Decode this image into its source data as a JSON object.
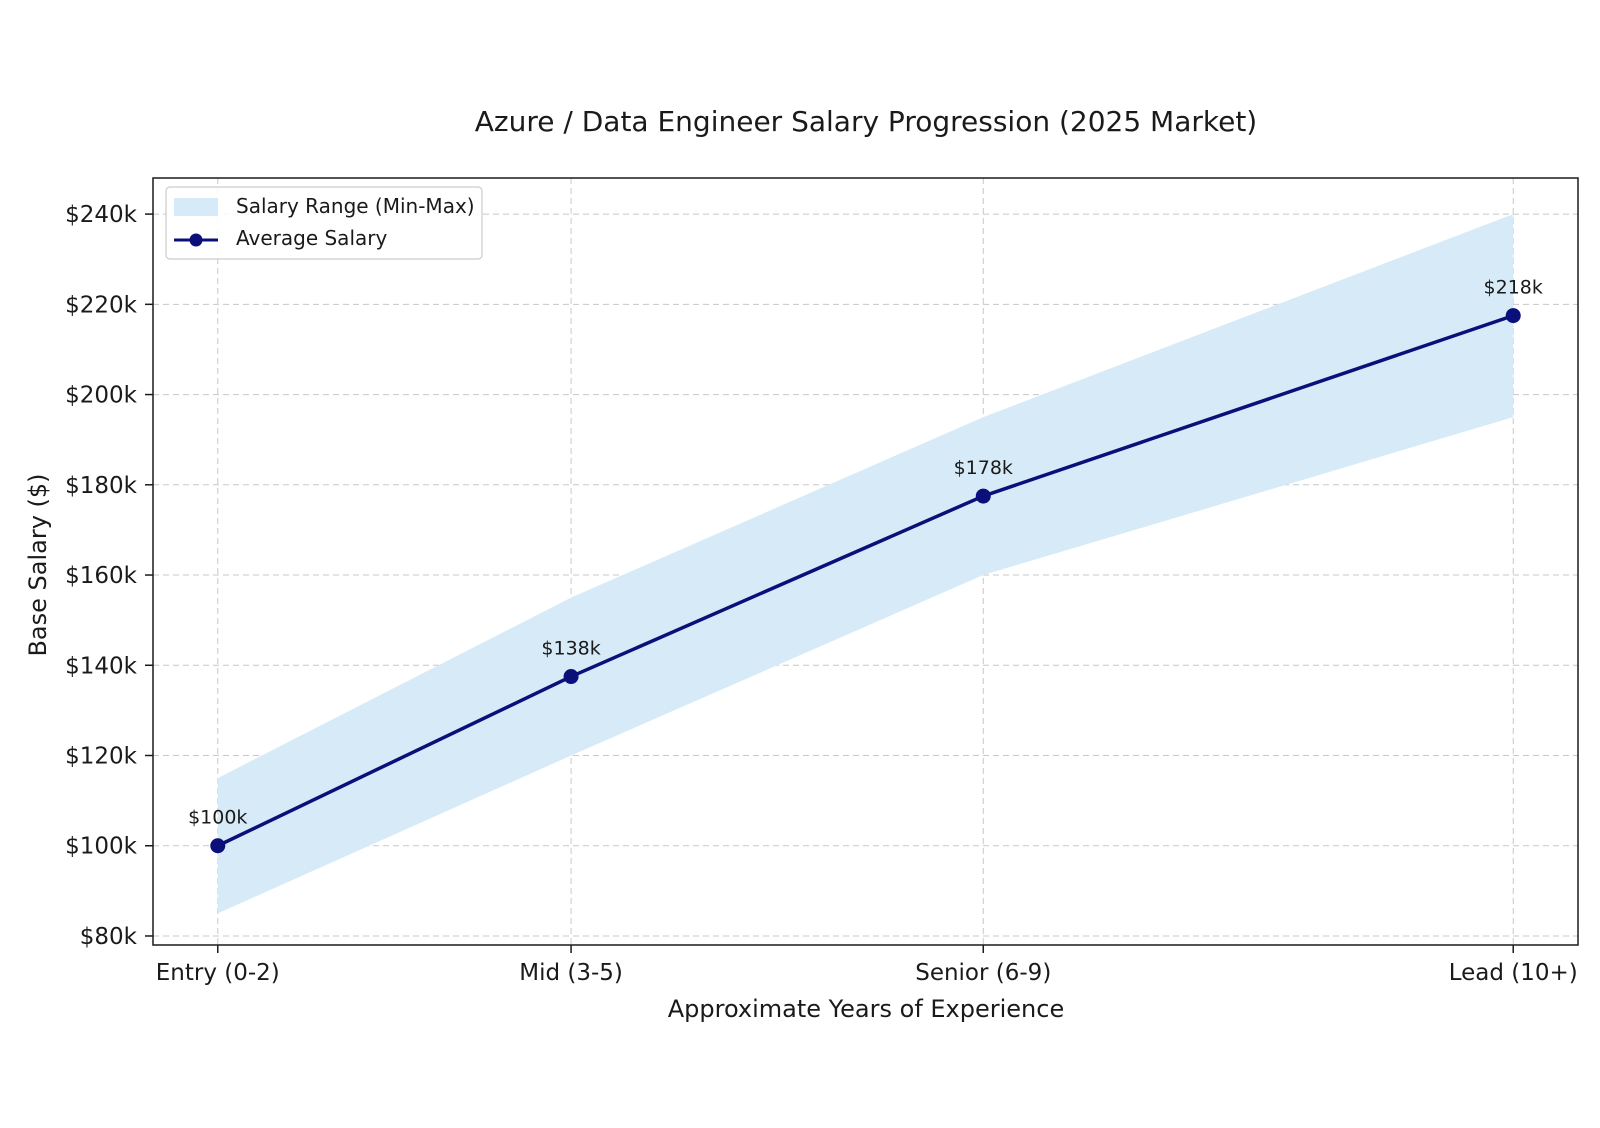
{
  "chart_data": {
    "type": "line",
    "title": "Azure / Data Engineer Salary Progression (2025 Market)",
    "xlabel": "Approximate Years of Experience",
    "ylabel": "Base Salary ($)",
    "categories": [
      "Entry (0-2)",
      "Mid (3-5)",
      "Senior (6-9)",
      "Lead (10+)"
    ],
    "x_positions": [
      1,
      4,
      7.5,
      12
    ],
    "xlim": [
      0.45,
      12.55
    ],
    "ylim": [
      78000,
      248000
    ],
    "yticks": [
      80000,
      100000,
      120000,
      140000,
      160000,
      180000,
      200000,
      220000,
      240000
    ],
    "ytick_labels": [
      "$80k",
      "$100k",
      "$120k",
      "$140k",
      "$160k",
      "$180k",
      "$200k",
      "$220k",
      "$240k"
    ],
    "grid": true,
    "legend_position": "top-left",
    "series": [
      {
        "name": "Average Salary",
        "kind": "line",
        "values": [
          100000,
          137500,
          177500,
          217500
        ],
        "point_labels": [
          "$100k",
          "$138k",
          "$178k",
          "$218k"
        ],
        "color": "#0a0f7a"
      },
      {
        "name": "Salary Range (Min-Max)",
        "kind": "band",
        "min": [
          85000,
          120000,
          160000,
          195000
        ],
        "max": [
          115000,
          155000,
          195000,
          240000
        ],
        "color": "#d6ebf7"
      }
    ]
  }
}
